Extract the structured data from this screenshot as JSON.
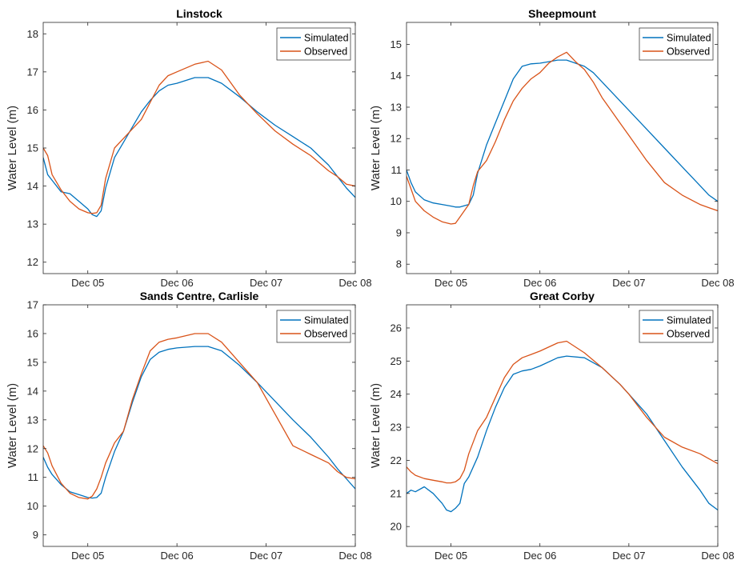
{
  "colors": {
    "simulated": "#0072BD",
    "observed": "#D95319",
    "axis": "#262626",
    "background": "#ffffff"
  },
  "chart_data": [
    {
      "type": "line",
      "title": "Linstock",
      "xlabel": "",
      "ylabel": "Water Level (m)",
      "x_ticks": [
        "Dec 05",
        "Dec 06",
        "Dec 07",
        "Dec 08"
      ],
      "xlim": [
        4.5,
        8
      ],
      "ylim": [
        11.7,
        18.3
      ],
      "y_ticks": [
        12,
        13,
        14,
        15,
        16,
        17,
        18
      ],
      "legend": "top-right",
      "grid": false,
      "series": [
        {
          "name": "Simulated",
          "x": [
            4.5,
            4.55,
            4.6,
            4.7,
            4.8,
            4.9,
            5.0,
            5.05,
            5.1,
            5.15,
            5.2,
            5.3,
            5.4,
            5.5,
            5.6,
            5.7,
            5.8,
            5.9,
            6.0,
            6.2,
            6.35,
            6.5,
            6.7,
            6.9,
            7.1,
            7.3,
            7.5,
            7.7,
            7.8,
            7.9,
            8.0
          ],
          "values": [
            14.75,
            14.3,
            14.15,
            13.85,
            13.8,
            13.6,
            13.4,
            13.25,
            13.2,
            13.35,
            13.95,
            14.75,
            15.15,
            15.55,
            15.95,
            16.25,
            16.5,
            16.65,
            16.7,
            16.85,
            16.85,
            16.7,
            16.35,
            15.95,
            15.6,
            15.3,
            15.0,
            14.55,
            14.25,
            13.95,
            13.7
          ]
        },
        {
          "name": "Observed",
          "x": [
            4.5,
            4.55,
            4.6,
            4.7,
            4.8,
            4.9,
            5.0,
            5.05,
            5.1,
            5.15,
            5.2,
            5.3,
            5.4,
            5.5,
            5.6,
            5.7,
            5.8,
            5.9,
            6.0,
            6.2,
            6.35,
            6.5,
            6.7,
            6.9,
            7.1,
            7.3,
            7.5,
            7.7,
            7.8,
            7.9,
            8.0
          ],
          "values": [
            15.0,
            14.8,
            14.3,
            13.9,
            13.6,
            13.4,
            13.3,
            13.28,
            13.3,
            13.5,
            14.2,
            15.0,
            15.25,
            15.5,
            15.75,
            16.2,
            16.65,
            16.9,
            17.0,
            17.2,
            17.28,
            17.05,
            16.4,
            15.9,
            15.45,
            15.1,
            14.8,
            14.4,
            14.25,
            14.05,
            14.0
          ]
        }
      ]
    },
    {
      "type": "line",
      "title": "Sheepmount",
      "xlabel": "",
      "ylabel": "Water Level (m)",
      "x_ticks": [
        "Dec 05",
        "Dec 06",
        "Dec 07",
        "Dec 08"
      ],
      "xlim": [
        4.5,
        8
      ],
      "ylim": [
        7.7,
        15.7
      ],
      "y_ticks": [
        8,
        9,
        10,
        11,
        12,
        13,
        14,
        15
      ],
      "legend": "top-right",
      "grid": false,
      "series": [
        {
          "name": "Simulated",
          "x": [
            4.5,
            4.55,
            4.6,
            4.7,
            4.8,
            4.9,
            5.0,
            5.05,
            5.1,
            5.2,
            5.25,
            5.3,
            5.4,
            5.5,
            5.6,
            5.7,
            5.8,
            5.9,
            6.0,
            6.1,
            6.2,
            6.3,
            6.4,
            6.5,
            6.6,
            6.7,
            6.8,
            6.9,
            7.0,
            7.2,
            7.4,
            7.6,
            7.8,
            7.9,
            8.0
          ],
          "values": [
            11.0,
            10.6,
            10.3,
            10.05,
            9.95,
            9.9,
            9.85,
            9.82,
            9.82,
            9.9,
            10.2,
            10.9,
            11.8,
            12.5,
            13.2,
            13.9,
            14.3,
            14.38,
            14.4,
            14.45,
            14.5,
            14.5,
            14.4,
            14.3,
            14.1,
            13.8,
            13.5,
            13.2,
            12.9,
            12.3,
            11.7,
            11.1,
            10.5,
            10.2,
            10.0
          ]
        },
        {
          "name": "Observed",
          "x": [
            4.5,
            4.55,
            4.6,
            4.7,
            4.8,
            4.9,
            5.0,
            5.05,
            5.1,
            5.2,
            5.25,
            5.3,
            5.4,
            5.5,
            5.6,
            5.7,
            5.8,
            5.9,
            6.0,
            6.1,
            6.2,
            6.3,
            6.4,
            6.5,
            6.6,
            6.7,
            6.8,
            6.9,
            7.0,
            7.2,
            7.4,
            7.6,
            7.8,
            7.9,
            8.0
          ],
          "values": [
            10.8,
            10.4,
            10.0,
            9.7,
            9.5,
            9.35,
            9.28,
            9.3,
            9.5,
            9.9,
            10.5,
            10.95,
            11.3,
            11.9,
            12.6,
            13.2,
            13.6,
            13.9,
            14.1,
            14.4,
            14.6,
            14.75,
            14.45,
            14.2,
            13.8,
            13.3,
            12.9,
            12.5,
            12.1,
            11.3,
            10.6,
            10.2,
            9.9,
            9.8,
            9.7
          ]
        }
      ]
    },
    {
      "type": "line",
      "title": "Sands Centre, Carlisle",
      "xlabel": "",
      "ylabel": "Water Level (m)",
      "x_ticks": [
        "Dec 05",
        "Dec 06",
        "Dec 07",
        "Dec 08"
      ],
      "xlim": [
        4.5,
        8
      ],
      "ylim": [
        8.6,
        17
      ],
      "y_ticks": [
        9,
        10,
        11,
        12,
        13,
        14,
        15,
        16,
        17
      ],
      "legend": "top-right",
      "grid": false,
      "series": [
        {
          "name": "Simulated",
          "x": [
            4.5,
            4.55,
            4.6,
            4.7,
            4.8,
            4.9,
            5.0,
            5.05,
            5.1,
            5.15,
            5.2,
            5.3,
            5.4,
            5.5,
            5.6,
            5.7,
            5.8,
            5.9,
            6.0,
            6.2,
            6.35,
            6.5,
            6.7,
            6.9,
            7.1,
            7.3,
            7.5,
            7.7,
            7.8,
            7.9,
            8.0
          ],
          "values": [
            11.7,
            11.35,
            11.1,
            10.75,
            10.5,
            10.4,
            10.3,
            10.28,
            10.3,
            10.45,
            11.0,
            11.9,
            12.6,
            13.6,
            14.5,
            15.1,
            15.35,
            15.45,
            15.5,
            15.55,
            15.55,
            15.4,
            14.9,
            14.3,
            13.65,
            13.0,
            12.4,
            11.7,
            11.3,
            10.95,
            10.6
          ]
        },
        {
          "name": "Observed",
          "x": [
            4.5,
            4.55,
            4.6,
            4.7,
            4.8,
            4.9,
            5.0,
            5.05,
            5.1,
            5.15,
            5.2,
            5.3,
            5.4,
            5.5,
            5.6,
            5.7,
            5.8,
            5.9,
            6.0,
            6.2,
            6.35,
            6.5,
            6.7,
            6.9,
            7.1,
            7.3,
            7.5,
            7.7,
            7.8,
            7.9,
            8.0
          ],
          "values": [
            12.1,
            11.85,
            11.4,
            10.8,
            10.45,
            10.3,
            10.25,
            10.35,
            10.6,
            11.0,
            11.5,
            12.2,
            12.6,
            13.7,
            14.6,
            15.4,
            15.7,
            15.8,
            15.85,
            16.0,
            16.0,
            15.7,
            15.0,
            14.3,
            13.2,
            12.1,
            11.8,
            11.5,
            11.2,
            11.0,
            10.95
          ]
        }
      ]
    },
    {
      "type": "line",
      "title": "Great Corby",
      "xlabel": "",
      "ylabel": "Water Level (m)",
      "x_ticks": [
        "Dec 05",
        "Dec 06",
        "Dec 07",
        "Dec 08"
      ],
      "xlim": [
        4.5,
        8
      ],
      "ylim": [
        19.4,
        26.7
      ],
      "y_ticks": [
        20,
        21,
        22,
        23,
        24,
        25,
        26
      ],
      "legend": "top-right",
      "grid": false,
      "series": [
        {
          "name": "Simulated",
          "x": [
            4.5,
            4.55,
            4.6,
            4.7,
            4.8,
            4.9,
            4.95,
            5.0,
            5.05,
            5.1,
            5.15,
            5.2,
            5.3,
            5.4,
            5.5,
            5.6,
            5.7,
            5.8,
            5.9,
            6.0,
            6.2,
            6.3,
            6.5,
            6.7,
            6.9,
            7.0,
            7.2,
            7.4,
            7.6,
            7.8,
            7.9,
            8.0
          ],
          "values": [
            21.0,
            21.1,
            21.05,
            21.2,
            21.0,
            20.7,
            20.5,
            20.45,
            20.55,
            20.7,
            21.3,
            21.5,
            22.1,
            22.9,
            23.6,
            24.2,
            24.6,
            24.7,
            24.75,
            24.85,
            25.1,
            25.15,
            25.1,
            24.8,
            24.3,
            24.0,
            23.4,
            22.6,
            21.8,
            21.1,
            20.7,
            20.5
          ]
        },
        {
          "name": "Observed",
          "x": [
            4.5,
            4.55,
            4.6,
            4.7,
            4.8,
            4.9,
            4.95,
            5.0,
            5.05,
            5.1,
            5.15,
            5.2,
            5.3,
            5.4,
            5.5,
            5.6,
            5.7,
            5.8,
            5.9,
            6.0,
            6.2,
            6.3,
            6.5,
            6.7,
            6.9,
            7.0,
            7.2,
            7.4,
            7.6,
            7.8,
            7.9,
            8.0
          ],
          "values": [
            21.8,
            21.65,
            21.55,
            21.45,
            21.4,
            21.35,
            21.32,
            21.32,
            21.35,
            21.45,
            21.7,
            22.2,
            22.9,
            23.3,
            23.9,
            24.5,
            24.9,
            25.1,
            25.2,
            25.3,
            25.55,
            25.6,
            25.25,
            24.8,
            24.3,
            24.0,
            23.3,
            22.7,
            22.4,
            22.2,
            22.05,
            21.9
          ]
        }
      ]
    }
  ]
}
